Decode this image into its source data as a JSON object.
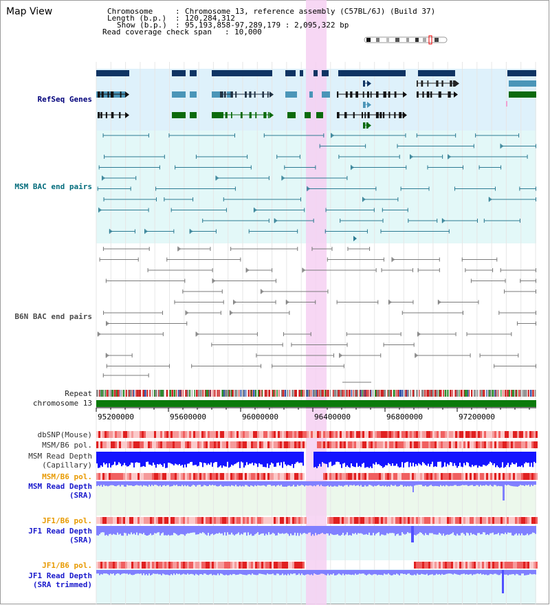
{
  "page": {
    "title": "Map View"
  },
  "info": {
    "chromosome_label": "Chromosome",
    "chromosome_value": "Chromosome 13, reference assembly (C57BL/6J) (Build 37)",
    "length_label": "Length (b.p.)",
    "length_value": "120,284,312",
    "show_label": "Show (b.p.)",
    "show_value": "95,193,858-97,289,179 : 2,095,322 bp",
    "coverage_label": "Read coverage check span",
    "coverage_value": "10,000"
  },
  "tracks": {
    "refseq": "RefSeq Genes",
    "msm_bac": "MSM BAC end pairs",
    "b6n_bac": "B6N BAC end pairs",
    "repeat": "Repeat",
    "chromosome": "chromosome 13",
    "dbsnp": "dbSNP(Mouse)",
    "msm_b6_pol_1": "MSM/B6 pol.",
    "msm_depth_cap": "MSM Read Depth\n(Capillary)",
    "msm_b6_pol_2": "MSM/B6 pol.",
    "msm_depth_sra": "MSM Read Depth\n(SRA)",
    "jf1_b6_pol_1": "JF1/B6 pol.",
    "jf1_depth_sra": "JF1 Read Depth\n(SRA)",
    "jf1_b6_pol_2": "JF1/B6 pol.",
    "jf1_depth_trim": "JF1 Read Depth\n(SRA trimmed)"
  },
  "axis": {
    "ticks": [
      "95200000",
      "95600000",
      "96000000",
      "96400000",
      "96800000",
      "97200000"
    ]
  },
  "colors": {
    "highlight": "#f6d0f2",
    "refseq_bg": "#def1fb",
    "gene_dark": "#0f3463",
    "gene_light": "#4a95b8",
    "gene_green": "#0b6a0b",
    "msm_bac": "#2b7a92",
    "b6n_bac": "#7a7a7a",
    "depth_blue": "#1414ff",
    "depth_light": "#8080ff",
    "label_navy": "#00007b",
    "label_teal": "#006b7b",
    "label_orange": "#e89a00",
    "label_blue": "#1a1acc"
  }
}
